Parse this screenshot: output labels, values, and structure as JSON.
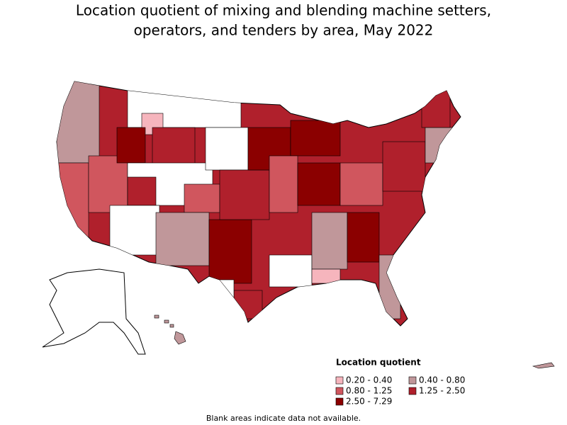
{
  "title_lines": [
    "Location quotient of mixing and blending machine setters,",
    "operators, and tenders by area, May 2022"
  ],
  "legend": {
    "title": "Location quotient",
    "items": [
      {
        "label": "0.20 - 0.40",
        "color": "#f6b5bd"
      },
      {
        "label": "0.40 - 0.80",
        "color": "#c0979a"
      },
      {
        "label": "0.80 - 1.25",
        "color": "#d0565e"
      },
      {
        "label": "1.25 - 2.50",
        "color": "#b0202c"
      },
      {
        "label": "2.50 - 7.29",
        "color": "#8b0000"
      }
    ]
  },
  "footnote": "Blank areas indicate data not available."
}
